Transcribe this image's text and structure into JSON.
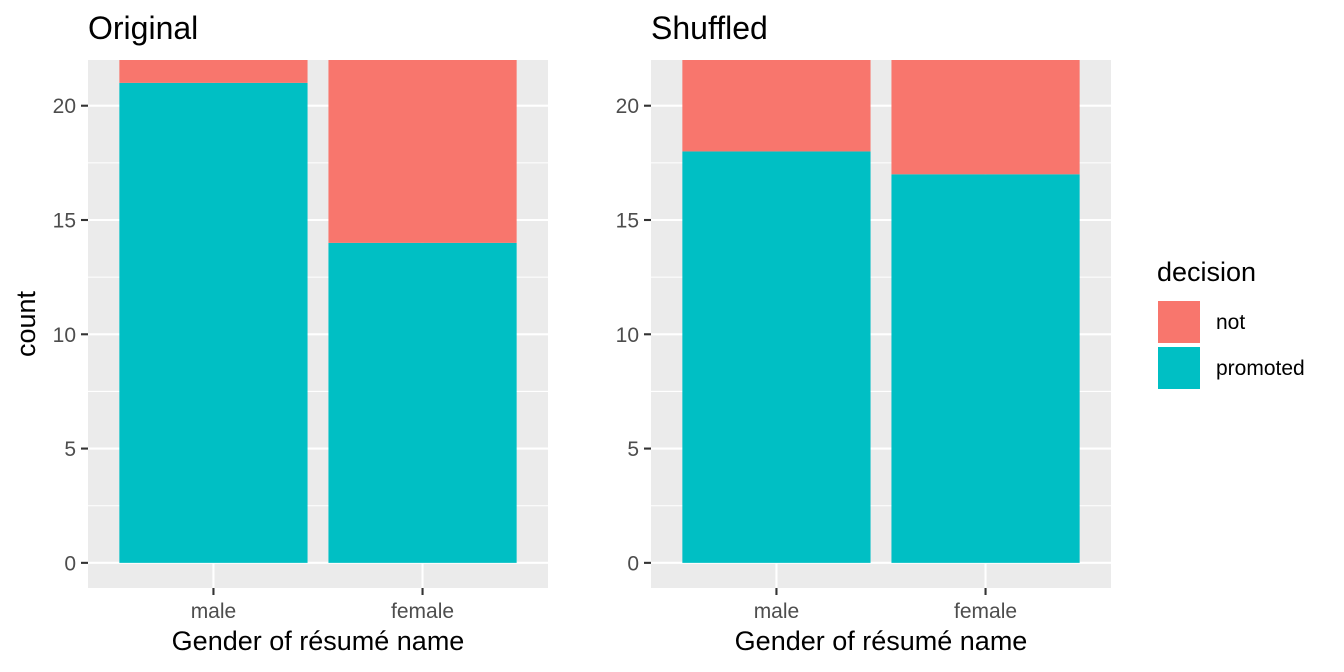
{
  "chart_data": [
    {
      "type": "bar",
      "stacked": true,
      "title": "Original",
      "xlabel": "Gender of résumé name",
      "ylabel": "count",
      "categories": [
        "male",
        "female"
      ],
      "series": [
        {
          "name": "not",
          "values": [
            3,
            10
          ]
        },
        {
          "name": "promoted",
          "values": [
            21,
            14
          ]
        }
      ],
      "ylim": [
        0,
        22
      ],
      "yticks": [
        0,
        5,
        10,
        15,
        20
      ],
      "grid": true
    },
    {
      "type": "bar",
      "stacked": true,
      "title": "Shuffled",
      "xlabel": "Gender of résumé name",
      "ylabel": "",
      "categories": [
        "male",
        "female"
      ],
      "series": [
        {
          "name": "not",
          "values": [
            6,
            7
          ]
        },
        {
          "name": "promoted",
          "values": [
            18,
            17
          ]
        }
      ],
      "ylim": [
        0,
        22
      ],
      "yticks": [
        0,
        5,
        10,
        15,
        20
      ],
      "grid": true
    }
  ],
  "legend": {
    "title": "decision",
    "placement": "right",
    "items": [
      {
        "label": "not",
        "color": "#F8766D"
      },
      {
        "label": "promoted",
        "color": "#00BFC4"
      }
    ]
  },
  "colors": {
    "not": "#F8766D",
    "promoted": "#00BFC4",
    "panel_background": "#EBEBEB",
    "grid": "#FFFFFF"
  }
}
